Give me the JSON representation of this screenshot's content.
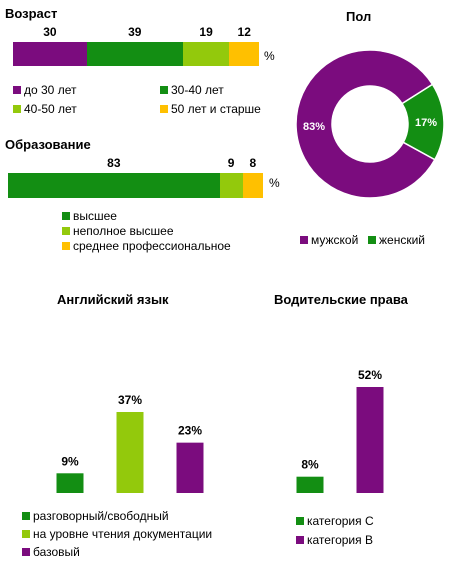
{
  "colors": {
    "purple": "#7B0C7E",
    "green": "#138E13",
    "light_green": "#93C90C",
    "yellow": "#FFC000"
  },
  "chart_data": [
    {
      "id": "age",
      "type": "bar",
      "orientation": "horizontal-stacked",
      "title": "Возраст",
      "unit": "%",
      "series": [
        {
          "name": "до 30 лет",
          "value": 30,
          "color": "#7B0C7E"
        },
        {
          "name": "30-40  лет",
          "value": 39,
          "color": "#138E13"
        },
        {
          "name": "40-50  лет",
          "value": 19,
          "color": "#93C90C"
        },
        {
          "name": "50 лет  и старше",
          "value": 12,
          "color": "#FFC000"
        }
      ]
    },
    {
      "id": "education",
      "type": "bar",
      "orientation": "horizontal-stacked",
      "title": "Образование",
      "unit": "%",
      "series": [
        {
          "name": "высшее",
          "value": 83,
          "color": "#138E13"
        },
        {
          "name": "неполное высшее",
          "value": 9,
          "color": "#93C90C"
        },
        {
          "name": "среднее профессиональное",
          "value": 8,
          "color": "#FFC000"
        }
      ]
    },
    {
      "id": "gender",
      "type": "pie",
      "title": "Пол",
      "series": [
        {
          "name": "мужской",
          "value": 83,
          "label": "83%",
          "color": "#7B0C7E"
        },
        {
          "name": "женский",
          "value": 17,
          "label": "17%",
          "color": "#138E13"
        }
      ]
    },
    {
      "id": "english",
      "type": "bar",
      "title": "Английский  язык",
      "series": [
        {
          "name": "разговорный/свободный",
          "value": 9,
          "label": "9%",
          "color": "#138E13"
        },
        {
          "name": "на уровне чтения документации",
          "value": 37,
          "label": "37%",
          "color": "#93C90C"
        },
        {
          "name": "базовый",
          "value": 23,
          "label": "23%",
          "color": "#7B0C7E"
        }
      ]
    },
    {
      "id": "license",
      "type": "bar",
      "title": "Водительские права",
      "series": [
        {
          "name": "категория  С",
          "value": 8,
          "label": "8%",
          "color": "#138E13"
        },
        {
          "name": "категория  В",
          "value": 52,
          "label": "52%",
          "color": "#7B0C7E"
        }
      ]
    }
  ]
}
